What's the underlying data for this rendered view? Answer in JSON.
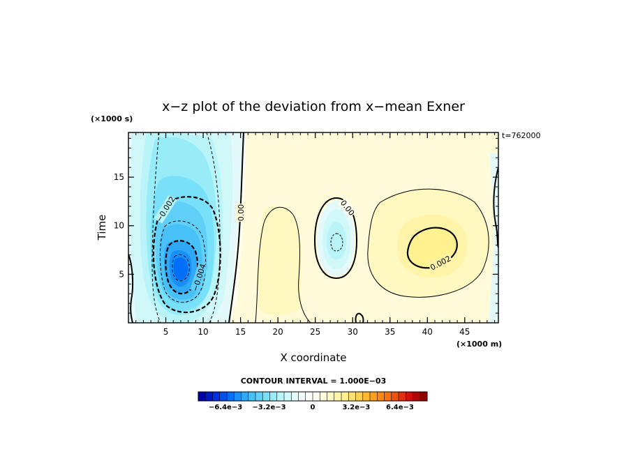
{
  "chart_data": {
    "type": "contour",
    "title": "x−z plot of the deviation from x−mean Exner",
    "xlabel": "X coordinate",
    "ylabel": "Time",
    "x_unit": "(×1000 m)",
    "y_unit": "(×1000 s)",
    "annotation": "t=762000",
    "xlim": [
      0,
      49.5
    ],
    "ylim": [
      0,
      19.6
    ],
    "x_ticks": [
      5,
      10,
      15,
      20,
      25,
      30,
      35,
      40,
      45
    ],
    "y_ticks": [
      5,
      10,
      15
    ],
    "contour_interval_text": "CONTOUR INTERVAL = 1.000E−03",
    "contour_labels": [
      "−0.002",
      "−0.004",
      "0.00",
      "0.00",
      "0.002"
    ],
    "extrema": [
      {
        "type": "min",
        "x": 7.3,
        "y": 5.5,
        "value": -0.0056
      },
      {
        "type": "min",
        "x": 28.1,
        "y": 8.6,
        "value": -0.0016
      },
      {
        "type": "max",
        "x": 41.6,
        "y": 7.6,
        "value": 0.0023
      }
    ],
    "colorbar": {
      "range": [
        -0.0084,
        0.0084
      ],
      "tick_labels": [
        "−6.4e−3",
        "−3.2e−3",
        "0",
        "3.2e−3",
        "6.4e−3"
      ],
      "tick_values": [
        -0.0064,
        -0.0032,
        0,
        0.0032,
        0.0064
      ],
      "colors": [
        "#0000a8",
        "#0018c8",
        "#0030e0",
        "#0050f0",
        "#0070f8",
        "#1890f8",
        "#30a8f8",
        "#48c0f8",
        "#60d0f8",
        "#78e0f8",
        "#98ecf8",
        "#b8f4f8",
        "#d0f8f8",
        "#e4fafa",
        "#f2fcfc",
        "#ffffff",
        "#fffef0",
        "#fffbd8",
        "#fff8c0",
        "#fff4a8",
        "#fff090",
        "#ffe070",
        "#ffd050",
        "#ffb830",
        "#ffa020",
        "#ff8810",
        "#f87010",
        "#f05010",
        "#e03010",
        "#d01010",
        "#b00808",
        "#900000"
      ]
    }
  }
}
